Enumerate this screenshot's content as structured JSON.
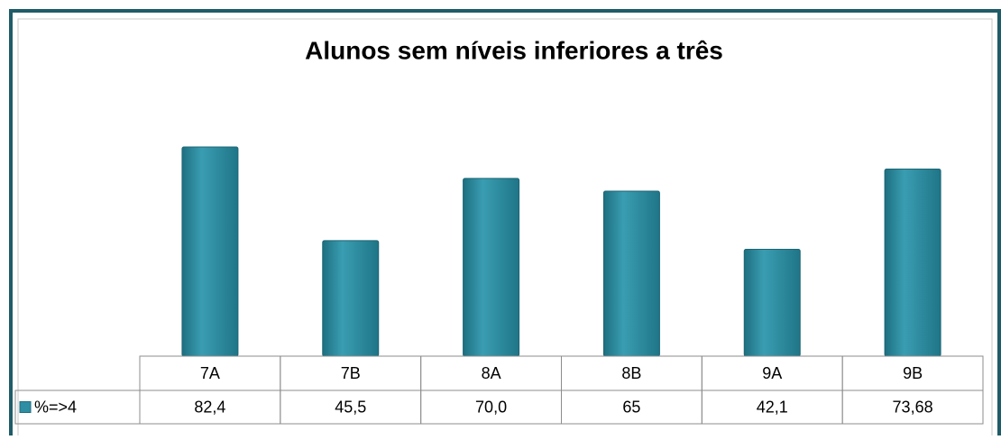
{
  "chart_data": {
    "type": "bar",
    "title": "Alunos  sem níveis inferiores a três",
    "categories": [
      "7A",
      "7B",
      "8A",
      "8B",
      "9A",
      "9B"
    ],
    "series": [
      {
        "name": "%=>4",
        "color": "#2e8ea3",
        "values": [
          82.4,
          45.5,
          70.0,
          65,
          42.1,
          73.68
        ],
        "value_labels": [
          "82,4",
          "45,5",
          "70,0",
          "65",
          "42,1",
          "73,68"
        ]
      }
    ]
  }
}
